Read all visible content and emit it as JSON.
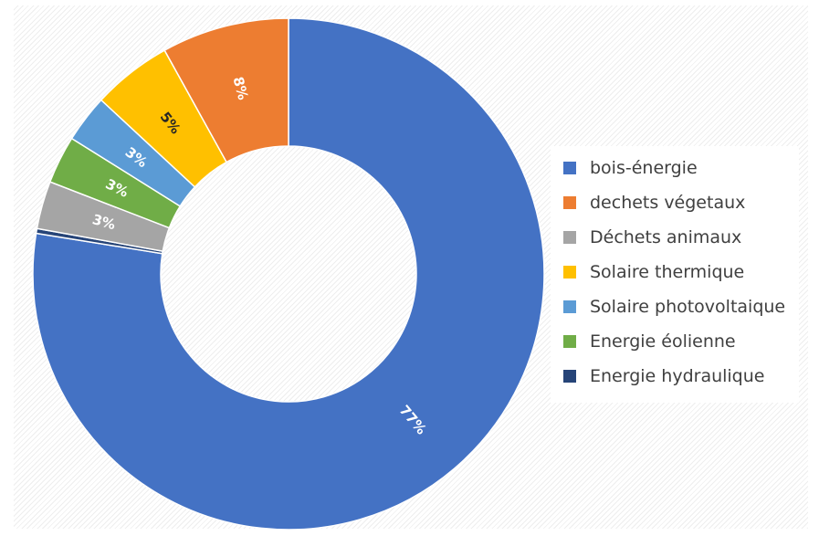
{
  "chart_data": {
    "type": "pie",
    "donut": true,
    "title": "",
    "slices": [
      {
        "label": "bois-énergie",
        "value": 77,
        "data_label": "77%",
        "color": "#4472C4",
        "label_color": "#ffffff"
      },
      {
        "label": "dechets végetaux",
        "value": 8,
        "data_label": "8%",
        "color": "#ED7D31",
        "label_color": "#ffffff"
      },
      {
        "label": "Déchets animaux",
        "value": 3,
        "data_label": "3%",
        "color": "#A5A5A5",
        "label_color": "#ffffff"
      },
      {
        "label": "Solaire thermique",
        "value": 5,
        "data_label": "5%",
        "color": "#FFC000",
        "label_color": "#262626"
      },
      {
        "label": "Solaire photovoltaique",
        "value": 3,
        "data_label": "3%",
        "color": "#5B9BD5",
        "label_color": "#ffffff"
      },
      {
        "label": "Energie éolienne",
        "value": 3,
        "data_label": "3%",
        "color": "#70AD47",
        "label_color": "#ffffff"
      },
      {
        "label": "Energie hydraulique",
        "value": 0.3,
        "data_label": "",
        "color": "#264478",
        "label_color": "#ffffff"
      }
    ],
    "draw_order": [
      0,
      6,
      2,
      5,
      4,
      3,
      1
    ],
    "legend_position": "right"
  }
}
